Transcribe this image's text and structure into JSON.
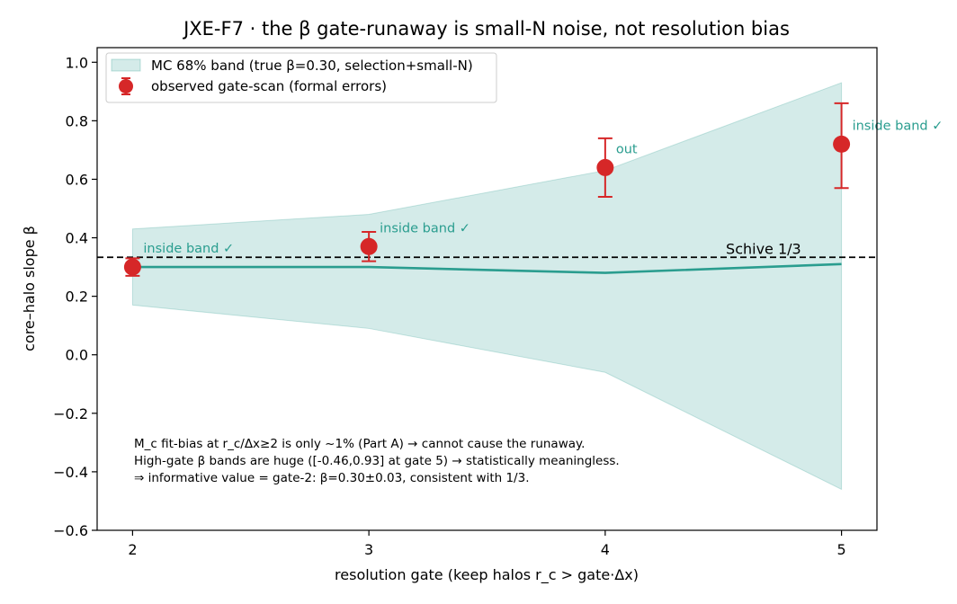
{
  "chart_data": {
    "type": "line",
    "title": "JXE-F7 · the β gate-runaway is small-N noise, not resolution bias",
    "xlabel": "resolution gate (keep halos r_c > gate·Δx)",
    "ylabel": "core–halo slope β",
    "xlim": [
      1.85,
      5.15
    ],
    "ylim": [
      -0.6,
      1.05
    ],
    "x_ticks": [
      2,
      3,
      4,
      5
    ],
    "x_tick_labels": [
      "2",
      "3",
      "4",
      "5"
    ],
    "y_ticks": [
      -0.6,
      -0.4,
      -0.2,
      0.0,
      0.2,
      0.4,
      0.6,
      0.8,
      1.0
    ],
    "y_tick_labels": [
      "−0.6",
      "−0.4",
      "−0.2",
      "0.0",
      "0.2",
      "0.4",
      "0.6",
      "0.8",
      "1.0"
    ],
    "grid": false,
    "legend_placement": "top-left",
    "band": {
      "name": "MC 68% band (true β=0.30, selection+small-N)",
      "x": [
        2,
        3,
        4,
        5
      ],
      "lower": [
        0.17,
        0.09,
        -0.06,
        -0.46
      ],
      "upper": [
        0.43,
        0.48,
        0.63,
        0.93
      ],
      "color": "#2a9d8f"
    },
    "median_line": {
      "x": [
        2,
        3,
        4,
        5
      ],
      "y": [
        0.3,
        0.3,
        0.28,
        0.31
      ],
      "color": "#2a9d8f"
    },
    "series": [
      {
        "name": "observed gate-scan (formal errors)",
        "x": [
          2,
          3,
          4,
          5
        ],
        "y": [
          0.3,
          0.37,
          0.64,
          0.72
        ],
        "yerr_low": [
          0.03,
          0.05,
          0.1,
          0.15
        ],
        "yerr_high": [
          0.03,
          0.05,
          0.1,
          0.14
        ],
        "color": "#d62728"
      }
    ],
    "point_labels": [
      "inside band ✓",
      "inside band ✓",
      "out",
      "inside band ✓"
    ],
    "reference_line": {
      "y": 0.3333,
      "label": "Schive 1/3",
      "style": "dashed",
      "color": "#000000"
    },
    "annotation_lines": [
      "M_c fit-bias at r_c/Δx≥2 is only ~1% (Part A) → cannot cause the runaway.",
      "High-gate β bands are huge ([-0.46,0.93] at gate 5) → statistically meaningless.",
      "⇒ informative value = gate-2: β=0.30±0.03, consistent with 1/3."
    ]
  }
}
